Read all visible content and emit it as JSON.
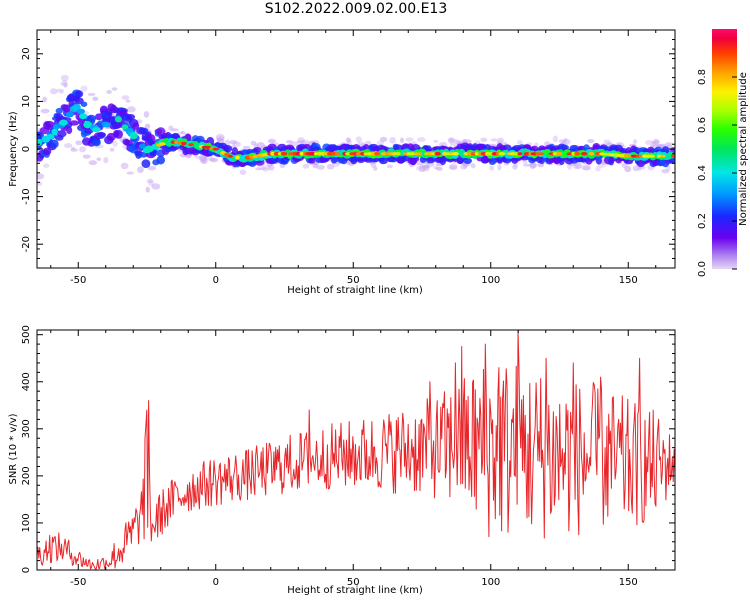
{
  "title": "S102.2022.009.02.00.E13",
  "chart_data": [
    {
      "type": "heatmap",
      "name": "spectrogram",
      "xlabel": "Height of straight line (km)",
      "ylabel": "Frequency (Hz)",
      "xlim": [
        -65,
        167
      ],
      "ylim": [
        -25,
        25
      ],
      "xticks": [
        -50,
        0,
        50,
        100,
        150
      ],
      "yticks": [
        -20,
        -10,
        0,
        10,
        20
      ],
      "colormap": "rainbow (purple to red)",
      "colorbar": {
        "label": "Normalized spectral amplitude",
        "range": [
          0.0,
          1.0
        ],
        "ticks": [
          "0.0",
          "0.2",
          "0.4",
          "0.6",
          "0.8"
        ]
      },
      "ridge": {
        "description": "frequency centroid of the dominant spectral ridge",
        "x": [
          -65,
          -60,
          -55,
          -50,
          -47,
          -45,
          -40,
          -35,
          -30,
          -27,
          -25,
          -22,
          -20,
          -15,
          -10,
          -5,
          0,
          5,
          10,
          15,
          20,
          30,
          40,
          50,
          60,
          70,
          80,
          90,
          95,
          100,
          110,
          120,
          130,
          140,
          150,
          160,
          167
        ],
        "y": [
          1,
          3,
          6,
          9,
          5,
          4,
          5,
          6,
          3,
          1,
          0,
          0.5,
          1,
          1.5,
          1,
          0.5,
          0,
          -1.5,
          -2,
          -1.5,
          -1,
          -1,
          -1,
          -1,
          -1,
          -1,
          -1,
          -1,
          -1,
          -1,
          -1,
          -1,
          -1,
          -1,
          -1.5,
          -1.5,
          -1.5
        ]
      }
    },
    {
      "type": "line",
      "name": "snr",
      "xlabel": "Height of straight line (km)",
      "ylabel": "SNR (10 * v/v)",
      "xlim": [
        -65,
        167
      ],
      "ylim": [
        0,
        510
      ],
      "xticks": [
        -50,
        0,
        50,
        100,
        150
      ],
      "yticks": [
        0,
        100,
        200,
        300,
        400,
        500
      ],
      "color": "#e8262a",
      "envelope_x": [
        -65,
        -60,
        -55,
        -50,
        -45,
        -40,
        -35,
        -30,
        -27,
        -25,
        -23,
        -20,
        -15,
        -10,
        -5,
        0,
        10,
        20,
        30,
        40,
        50,
        60,
        70,
        80,
        90,
        100,
        110,
        120,
        130,
        140,
        150,
        160,
        167
      ],
      "envelope_mean": [
        30,
        50,
        45,
        25,
        10,
        15,
        40,
        80,
        120,
        200,
        90,
        120,
        150,
        170,
        180,
        190,
        200,
        215,
        230,
        240,
        245,
        250,
        255,
        260,
        265,
        260,
        255,
        245,
        240,
        235,
        225,
        220,
        230
      ],
      "envelope_amp": [
        25,
        35,
        30,
        20,
        12,
        20,
        40,
        50,
        60,
        150,
        50,
        50,
        50,
        50,
        50,
        55,
        55,
        60,
        65,
        70,
        75,
        85,
        95,
        110,
        150,
        200,
        200,
        180,
        170,
        160,
        140,
        120,
        50
      ],
      "peaks": [
        [
          -24.5,
          360
        ],
        [
          -25.8,
          280
        ],
        [
          110,
          510
        ],
        [
          98,
          480
        ],
        [
          89.5,
          475
        ],
        [
          120,
          450
        ],
        [
          130,
          440
        ],
        [
          154,
          450
        ],
        [
          87,
          440
        ],
        [
          103,
          430
        ],
        [
          78,
          400
        ],
        [
          140,
          410
        ],
        [
          34,
          340
        ]
      ]
    }
  ]
}
